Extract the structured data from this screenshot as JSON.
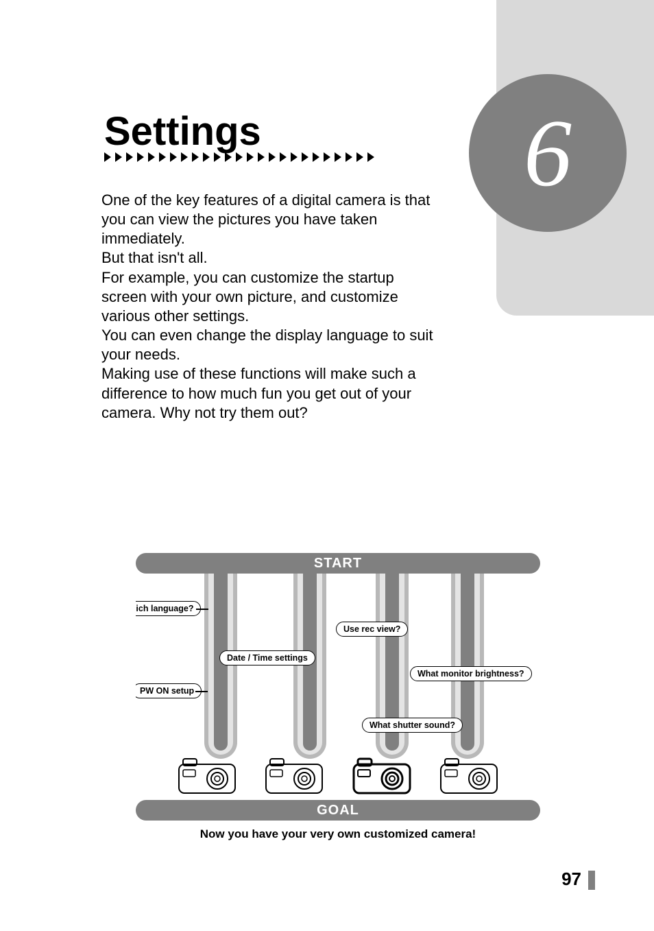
{
  "chapter": {
    "number": "6",
    "title": "Settings"
  },
  "arrow_count": 25,
  "body": {
    "p1": "One of the key features of a digital camera is that you can view the pictures you have taken immediately.",
    "p2": "But that isn't all.",
    "p3": "For example, you can customize the startup screen with your own picture, and customize various other settings.",
    "p4": "You can even change the display language to suit your needs.",
    "p5": "Making use of these functions will make such a difference to how much fun you get out of your camera. Why not try them out?"
  },
  "diagram": {
    "start_label": "START",
    "goal_label": "GOAL",
    "pills": {
      "language": "Which language?",
      "rec_view": "Use rec view?",
      "datetime": "Date / Time settings",
      "brightness": "What monitor brightness?",
      "pw_on": "PW ON setup",
      "shutter": "What shutter sound?"
    },
    "caption": "Now you have your very own customized camera!",
    "colors": {
      "bar_bg": "#808080",
      "bar_text": "#ffffff",
      "lane_outer": "#b8b8b8",
      "lane_inner": "#e4e4e4",
      "lane_core": "#808080",
      "pill_bg": "#ffffff",
      "pill_border": "#000000"
    },
    "camera_count": 4,
    "lane_count": 4
  },
  "page_number": "97",
  "colors": {
    "sidebar": "#d9d9d9",
    "circle": "#808080",
    "text": "#000000",
    "page_mark": "#808080"
  },
  "fonts": {
    "title_size": 58,
    "body_size": 22,
    "chapter_num_size": 140,
    "pill_size": 12.5,
    "caption_size": 17,
    "page_num_size": 26
  }
}
